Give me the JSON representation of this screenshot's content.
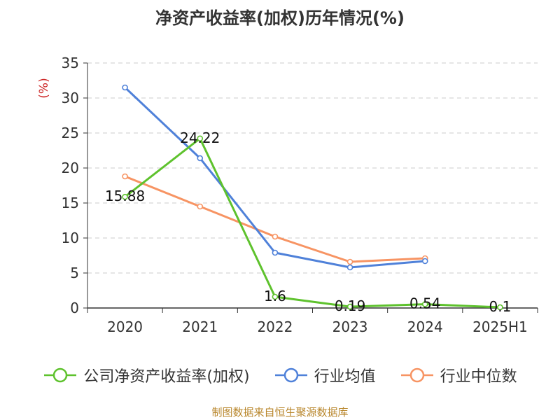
{
  "chart_data": {
    "type": "line",
    "title": "净资产收益率(加权)历年情况(%)",
    "ylabel": "(%)",
    "categories": [
      "2020",
      "2021",
      "2022",
      "2023",
      "2024",
      "2025H1"
    ],
    "yticks": [
      "0",
      "5",
      "10",
      "15",
      "20",
      "25",
      "30",
      "35"
    ],
    "ylim": [
      0,
      35
    ],
    "grid": "horizontal-dashed",
    "legend_position": "bottom",
    "series": [
      {
        "name": "公司净资产收益率(加权)",
        "color": "#5ec22d",
        "values": [
          15.88,
          24.22,
          1.6,
          0.19,
          0.54,
          0.1
        ],
        "labels": [
          "15.88",
          "24.22",
          "1.6",
          "0.19",
          "0.54",
          "0.1"
        ]
      },
      {
        "name": "行业均值",
        "color": "#4f81d9",
        "values": [
          31.5,
          21.4,
          7.9,
          5.8,
          6.7,
          null
        ]
      },
      {
        "name": "行业中位数",
        "color": "#f79463",
        "values": [
          18.8,
          14.5,
          10.2,
          6.6,
          7.1,
          null
        ]
      }
    ]
  },
  "source": "制图数据来自恒生聚源数据库"
}
